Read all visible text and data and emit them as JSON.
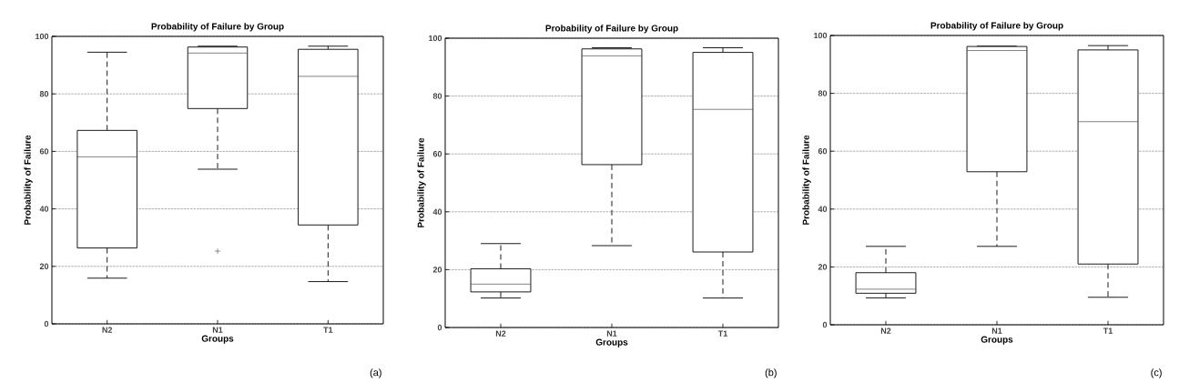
{
  "chart_data": [
    {
      "type": "box",
      "title": "Probability of Failure by Group",
      "xlabel": "Groups",
      "ylabel": "Probability of Failure",
      "categories": [
        "N2",
        "N1",
        "T1"
      ],
      "boxes": [
        {
          "low": 15.9,
          "q1": 26.4,
          "median": 58.1,
          "q3": 67.3,
          "high": 94.5
        },
        {
          "low": 53.8,
          "q1": 74.9,
          "median": 94.2,
          "q3": 96.3,
          "high": 96.6,
          "outliers": [
            25.3
          ]
        },
        {
          "low": 14.7,
          "q1": 34.4,
          "median": 86.1,
          "q3": 95.5,
          "high": 96.6
        }
      ],
      "ylim": [
        0,
        100
      ],
      "yticks": [
        0,
        20,
        40,
        60,
        80,
        100
      ],
      "grid": "y",
      "annotations": [
        "(a)"
      ]
    },
    {
      "type": "box",
      "title": "Probability of Failure by Group",
      "xlabel": "Groups",
      "ylabel": "Probability of Failure",
      "categories": [
        "N2",
        "N1",
        "T1"
      ],
      "boxes": [
        {
          "low": 10.2,
          "q1": 12.3,
          "median": 15,
          "q3": 20.3,
          "high": 29
        },
        {
          "low": 28.3,
          "q1": 56.3,
          "median": 93.9,
          "q3": 96.3,
          "high": 96.7
        },
        {
          "low": 10.2,
          "q1": 26.1,
          "median": 75.4,
          "q3": 95.1,
          "high": 96.7
        }
      ],
      "ylim": [
        0,
        100
      ],
      "yticks": [
        0,
        20,
        40,
        60,
        80,
        100
      ],
      "grid": "y",
      "annotations": [
        "(b)"
      ]
    },
    {
      "type": "box",
      "title": "Probability of Failure by Group",
      "xlabel": "Groups",
      "ylabel": "Probability of Failure",
      "categories": [
        "N2",
        "N1",
        "T1"
      ],
      "boxes": [
        {
          "low": 9.3,
          "q1": 10.9,
          "median": 12.3,
          "q3": 18,
          "high": 27.1
        },
        {
          "low": 27.1,
          "q1": 52.9,
          "median": 94.8,
          "q3": 96.2,
          "high": 96.3
        },
        {
          "low": 9.5,
          "q1": 21,
          "median": 70.2,
          "q3": 95,
          "high": 96.5
        }
      ],
      "ylim": [
        0,
        100
      ],
      "yticks": [
        0,
        20,
        40,
        60,
        80,
        100
      ],
      "grid": "y",
      "annotations": [
        "(c)"
      ]
    }
  ]
}
